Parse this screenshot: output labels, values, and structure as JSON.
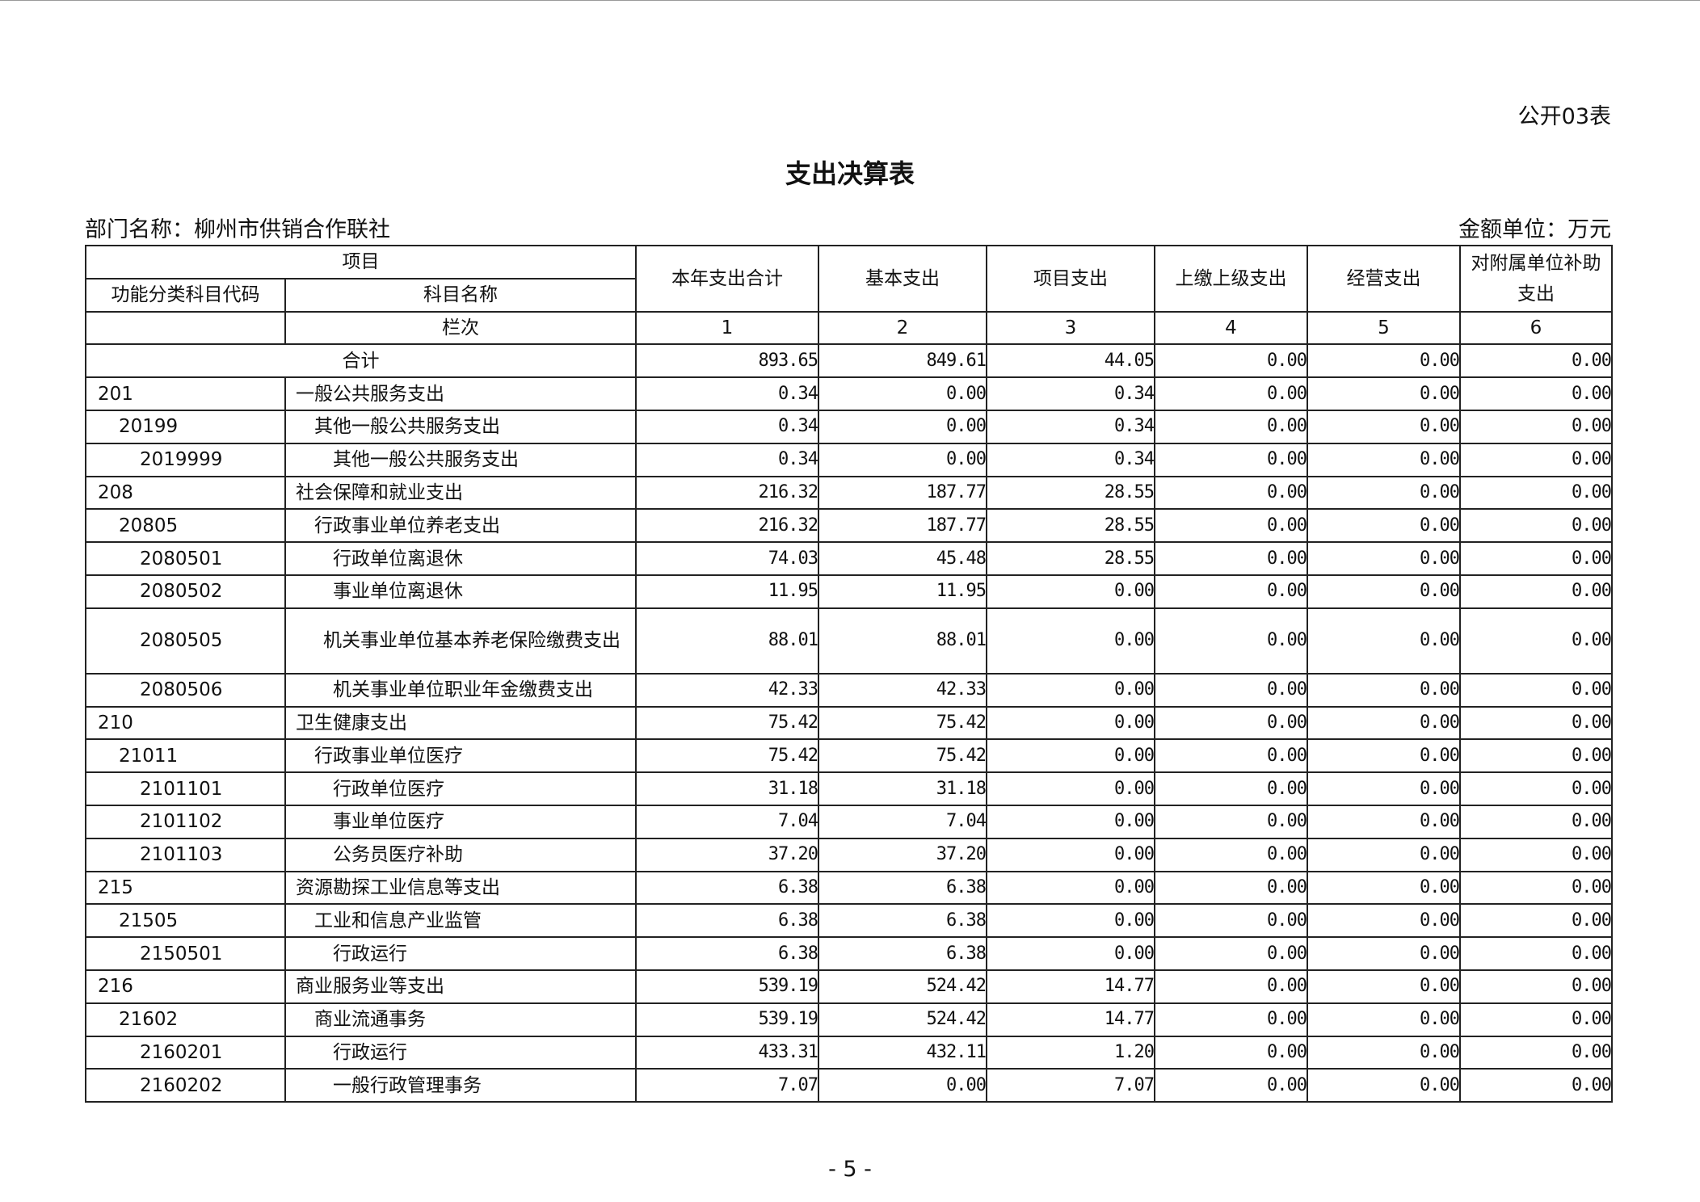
{
  "form_no": "公开03表",
  "title": "支出决算表",
  "department": "部门名称：柳州市供销合作联社",
  "unit": "金额单位：万元",
  "header": {
    "item": "项目",
    "code": "功能分类科目代码",
    "name": "科目名称",
    "row_label": "栏次",
    "columns": [
      "本年支出合计",
      "基本支出",
      "项目支出",
      "上缴上级支出",
      "经营支出",
      "对附属单位补助支出"
    ],
    "column_numbers": [
      "1",
      "2",
      "3",
      "4",
      "5",
      "6"
    ]
  },
  "total": {
    "label": "合计",
    "values": [
      "893.65",
      "849.61",
      "44.05",
      "0.00",
      "0.00",
      "0.00"
    ]
  },
  "rows": [
    {
      "code": "201",
      "name": "一般公共服务支出",
      "level": 0,
      "values": [
        "0.34",
        "0.00",
        "0.34",
        "0.00",
        "0.00",
        "0.00"
      ]
    },
    {
      "code": "20199",
      "name": "其他一般公共服务支出",
      "level": 1,
      "values": [
        "0.34",
        "0.00",
        "0.34",
        "0.00",
        "0.00",
        "0.00"
      ]
    },
    {
      "code": "2019999",
      "name": "其他一般公共服务支出",
      "level": 2,
      "values": [
        "0.34",
        "0.00",
        "0.34",
        "0.00",
        "0.00",
        "0.00"
      ]
    },
    {
      "code": "208",
      "name": "社会保障和就业支出",
      "level": 0,
      "values": [
        "216.32",
        "187.77",
        "28.55",
        "0.00",
        "0.00",
        "0.00"
      ]
    },
    {
      "code": "20805",
      "name": "行政事业单位养老支出",
      "level": 1,
      "values": [
        "216.32",
        "187.77",
        "28.55",
        "0.00",
        "0.00",
        "0.00"
      ]
    },
    {
      "code": "2080501",
      "name": "行政单位离退休",
      "level": 2,
      "values": [
        "74.03",
        "45.48",
        "28.55",
        "0.00",
        "0.00",
        "0.00"
      ]
    },
    {
      "code": "2080502",
      "name": "事业单位离退休",
      "level": 2,
      "values": [
        "11.95",
        "11.95",
        "0.00",
        "0.00",
        "0.00",
        "0.00"
      ]
    },
    {
      "code": "2080505",
      "name": "机关事业单位基本养老保险缴费支出",
      "level": 2,
      "values": [
        "88.01",
        "88.01",
        "0.00",
        "0.00",
        "0.00",
        "0.00"
      ]
    },
    {
      "code": "2080506",
      "name": "机关事业单位职业年金缴费支出",
      "level": 2,
      "values": [
        "42.33",
        "42.33",
        "0.00",
        "0.00",
        "0.00",
        "0.00"
      ]
    },
    {
      "code": "210",
      "name": "卫生健康支出",
      "level": 0,
      "values": [
        "75.42",
        "75.42",
        "0.00",
        "0.00",
        "0.00",
        "0.00"
      ]
    },
    {
      "code": "21011",
      "name": "行政事业单位医疗",
      "level": 1,
      "values": [
        "75.42",
        "75.42",
        "0.00",
        "0.00",
        "0.00",
        "0.00"
      ]
    },
    {
      "code": "2101101",
      "name": "行政单位医疗",
      "level": 2,
      "values": [
        "31.18",
        "31.18",
        "0.00",
        "0.00",
        "0.00",
        "0.00"
      ]
    },
    {
      "code": "2101102",
      "name": "事业单位医疗",
      "level": 2,
      "values": [
        "7.04",
        "7.04",
        "0.00",
        "0.00",
        "0.00",
        "0.00"
      ]
    },
    {
      "code": "2101103",
      "name": "公务员医疗补助",
      "level": 2,
      "values": [
        "37.20",
        "37.20",
        "0.00",
        "0.00",
        "0.00",
        "0.00"
      ]
    },
    {
      "code": "215",
      "name": "资源勘探工业信息等支出",
      "level": 0,
      "values": [
        "6.38",
        "6.38",
        "0.00",
        "0.00",
        "0.00",
        "0.00"
      ]
    },
    {
      "code": "21505",
      "name": "工业和信息产业监管",
      "level": 1,
      "values": [
        "6.38",
        "6.38",
        "0.00",
        "0.00",
        "0.00",
        "0.00"
      ]
    },
    {
      "code": "2150501",
      "name": "行政运行",
      "level": 2,
      "values": [
        "6.38",
        "6.38",
        "0.00",
        "0.00",
        "0.00",
        "0.00"
      ]
    },
    {
      "code": "216",
      "name": "商业服务业等支出",
      "level": 0,
      "values": [
        "539.19",
        "524.42",
        "14.77",
        "0.00",
        "0.00",
        "0.00"
      ]
    },
    {
      "code": "21602",
      "name": "商业流通事务",
      "level": 1,
      "values": [
        "539.19",
        "524.42",
        "14.77",
        "0.00",
        "0.00",
        "0.00"
      ]
    },
    {
      "code": "2160201",
      "name": "行政运行",
      "level": 2,
      "values": [
        "433.31",
        "432.11",
        "1.20",
        "0.00",
        "0.00",
        "0.00"
      ]
    },
    {
      "code": "2160202",
      "name": "一般行政管理事务",
      "level": 2,
      "values": [
        "7.07",
        "0.00",
        "7.07",
        "0.00",
        "0.00",
        "0.00"
      ]
    }
  ],
  "page_number": "- 5 -"
}
